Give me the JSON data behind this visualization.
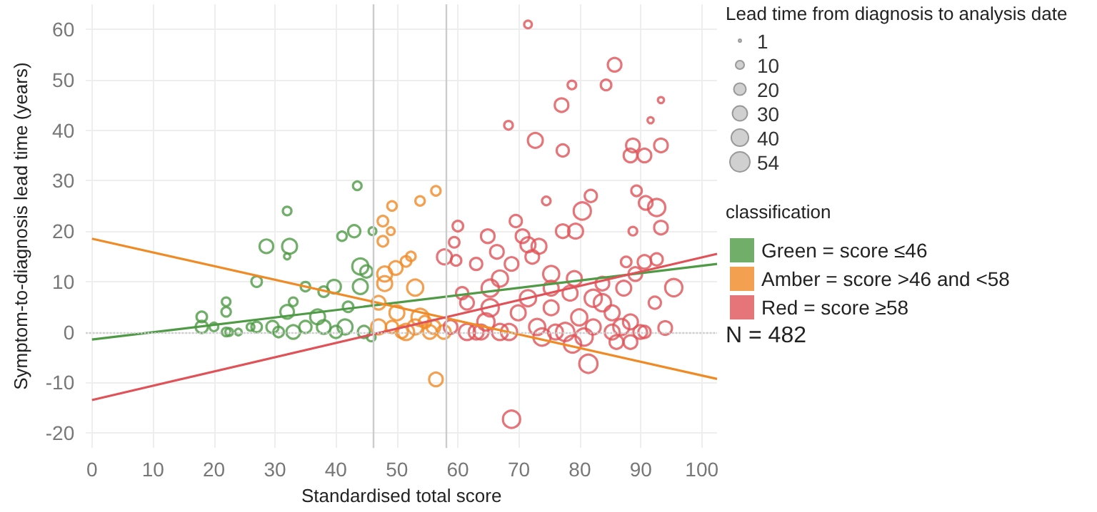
{
  "chart_data": {
    "type": "bubble",
    "xlabel": "Standardised total score",
    "ylabel": "Symptom-to-diagnosis lead time (years)",
    "legend_title": "classification",
    "annotations": [
      "Lead time from diagnosis to analysis date",
      "N = 482"
    ],
    "xlim": [
      -1,
      102.5
    ],
    "ylim": [
      -23,
      65
    ],
    "xticks": [
      0,
      10,
      20,
      30,
      40,
      50,
      60,
      70,
      80,
      90,
      100
    ],
    "yticks": [
      -20,
      -10,
      0,
      10,
      20,
      30,
      40,
      50,
      60
    ],
    "grid": true,
    "legend": "right",
    "marker": "circle",
    "size_legend": [
      1,
      10,
      20,
      30,
      40,
      54
    ],
    "ref_lines": [
      {
        "axis": "x",
        "value": 46,
        "color": "#cccccc",
        "line_style": "solid"
      },
      {
        "axis": "x",
        "value": 58,
        "color": "#cccccc",
        "line_style": "solid"
      },
      {
        "axis": "y",
        "value": 0,
        "color": "#cccccc",
        "line_style": "dotted"
      }
    ],
    "series": [
      {
        "name": "Green = score ≤46",
        "color": "#4e9a45",
        "x": [
          18,
          18,
          22,
          22,
          22,
          22.5,
          24,
          27,
          28.6,
          27,
          32.4,
          32,
          32,
          32,
          33,
          29.6,
          30.6,
          35,
          35,
          37,
          38,
          39.7,
          38,
          41,
          43,
          43.5,
          44,
          46,
          45,
          44,
          41.5,
          44.6,
          45.8,
          20,
          26,
          33,
          40,
          42
        ],
        "values": [
          3,
          1,
          6,
          4,
          0,
          0,
          0,
          10,
          17,
          1,
          17,
          24,
          15,
          4,
          6,
          1,
          0,
          9,
          1,
          3,
          8,
          9,
          1,
          19,
          20,
          29,
          13,
          20,
          12,
          9,
          1,
          0,
          -1,
          1,
          1,
          0,
          0,
          5
        ],
        "sizes": [
          15,
          20,
          10,
          12,
          10,
          8,
          6,
          15,
          25,
          15,
          30,
          10,
          5,
          25,
          10,
          20,
          15,
          12,
          20,
          30,
          15,
          25,
          25,
          12,
          20,
          10,
          35,
          8,
          20,
          30,
          30,
          20,
          10,
          10,
          8,
          25,
          20,
          15
        ]
      },
      {
        "name": "Amber = score >46 and <58",
        "color": "#f08a24",
        "x": [
          56.4,
          53.8,
          49.2,
          47.7,
          49,
          47.7,
          52.3,
          51.5,
          49.8,
          48,
          53,
          47,
          50,
          53.8,
          56,
          49.2,
          47,
          51.5,
          57.7,
          53,
          54.6,
          56.4,
          48,
          50.8,
          55.4
        ],
        "values": [
          28,
          26,
          25,
          22,
          20,
          18,
          15,
          14,
          12.7,
          9.6,
          8.8,
          5.8,
          3.8,
          2.9,
          1,
          1,
          1,
          0,
          0,
          1,
          2,
          -9.4,
          11.5,
          0,
          0
        ],
        "sizes": [
          12,
          12,
          12,
          15,
          8,
          15,
          12,
          15,
          25,
          30,
          35,
          25,
          30,
          40,
          25,
          20,
          30,
          35,
          25,
          30,
          20,
          25,
          30,
          20,
          25
        ]
      },
      {
        "name": "Red = score ≥58",
        "color": "#e05258",
        "x": [
          71.5,
          85.7,
          78.7,
          84.3,
          77,
          93.3,
          91.6,
          68.3,
          72.7,
          77.2,
          88.7,
          88.3,
          90.6,
          93.3,
          74.5,
          89.3,
          90.8,
          92.6,
          81.8,
          80.4,
          69.5,
          60,
          77.2,
          79.3,
          93.3,
          88.7,
          64.9,
          70.6,
          59.4,
          73.3,
          66.4,
          71.5,
          57.8,
          59.7,
          72.2,
          92.6,
          90.6,
          87.6,
          63,
          68.8,
          95.4,
          92.3,
          94,
          90.6,
          81.4,
          78.8,
          68.8,
          58.8,
          61.5,
          64.6,
          66.9,
          65.3,
          69.9,
          73,
          75.3,
          77.6,
          79.9,
          82.2,
          83.7,
          85.3,
          86.8,
          88.3,
          89.9,
          83.7,
          75.3,
          65.3,
          61.5,
          71.5,
          78.4,
          82.2,
          68.4,
          63,
          73.8,
          76,
          80.7,
          86,
          88.3,
          85.3,
          87.2,
          89.1,
          60.7,
          66.9,
          79.1,
          75.3,
          63.8
        ],
        "values": [
          61,
          53,
          49,
          49,
          45,
          46,
          42,
          41,
          38,
          36,
          37,
          35,
          35,
          37,
          26,
          28,
          25.6,
          24.7,
          27,
          24,
          22,
          21,
          20,
          20,
          20.7,
          20,
          19,
          19,
          17.8,
          17,
          15.9,
          17.3,
          14.9,
          14.2,
          14.9,
          14.4,
          13.9,
          13.9,
          13.5,
          13.5,
          8.8,
          5.8,
          0.8,
          0,
          -6.3,
          -2.4,
          -17.3,
          1,
          0,
          2,
          0,
          4.8,
          3.8,
          1,
          4.8,
          0,
          2.9,
          1,
          5.8,
          0,
          1,
          2,
          0,
          9.6,
          8.7,
          8.7,
          5.8,
          6.7,
          7.7,
          6.7,
          0,
          0,
          -1,
          0,
          -1,
          -2,
          -2,
          3.8,
          8.7,
          11.5,
          7.7,
          10.6,
          10.6,
          11.5,
          0
        ],
        "sizes": [
          8,
          25,
          10,
          15,
          25,
          5,
          5,
          10,
          30,
          20,
          25,
          25,
          25,
          25,
          10,
          15,
          25,
          40,
          20,
          40,
          20,
          15,
          25,
          30,
          25,
          10,
          25,
          25,
          15,
          30,
          25,
          30,
          30,
          15,
          25,
          20,
          25,
          15,
          20,
          25,
          40,
          20,
          25,
          20,
          45,
          40,
          40,
          25,
          35,
          40,
          35,
          40,
          30,
          35,
          30,
          45,
          35,
          30,
          40,
          30,
          35,
          30,
          25,
          25,
          30,
          40,
          25,
          35,
          30,
          40,
          35,
          30,
          40,
          30,
          40,
          25,
          25,
          30,
          30,
          25,
          20,
          35,
          30,
          35,
          30
        ]
      },
      {
        "type": "line",
        "color": "#4e9a45",
        "x": [
          0,
          102.5
        ],
        "values": [
          -1.5,
          13.5
        ],
        "line_style": "solid",
        "marker": "none"
      },
      {
        "type": "line",
        "color": "#f08a24",
        "x": [
          0,
          102.5
        ],
        "values": [
          18.5,
          -9.3
        ],
        "line_style": "solid",
        "marker": "none"
      },
      {
        "type": "line",
        "color": "#e05258",
        "x": [
          0,
          102.5
        ],
        "values": [
          -13.5,
          15.5
        ],
        "line_style": "solid",
        "marker": "none"
      }
    ]
  }
}
